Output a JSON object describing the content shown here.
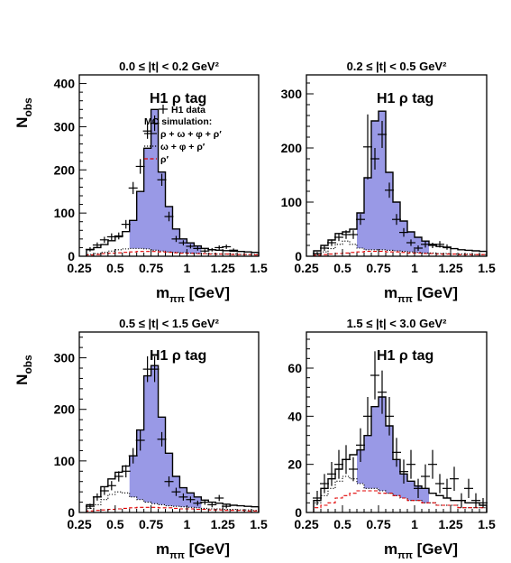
{
  "figure": {
    "ylabel": "N",
    "ylabel_sub": "obs",
    "xlabel": "m",
    "xlabel_sub": "ππ",
    "xlabel_unit": "[GeV]",
    "tag_label": "H1 ρ tag",
    "legend": {
      "data": "H1 data",
      "mc_title": "MC simulation:",
      "mc_total": "ρ + ω + φ + ρ′",
      "mc_bkg": "ω + φ + ρ′",
      "mc_rhoprime": "ρ′"
    },
    "colors": {
      "rho_fill": "#9999e6",
      "mc_total_line": "#000000",
      "mc_bkg_line": "#000000",
      "rhoprime_line": "#e00000",
      "data": "#000000"
    }
  },
  "chart_data": [
    {
      "type": "bar",
      "title": "0.0 ≤ |t| < 0.2 GeV²",
      "xlim": [
        0.25,
        1.5
      ],
      "ylim": [
        0,
        420
      ],
      "xticks": [
        "0.25",
        "0.5",
        "0.75",
        "1",
        "1.25",
        "1.5"
      ],
      "xtick_values": [
        0.25,
        0.5,
        0.75,
        1.0,
        1.25,
        1.5
      ],
      "yticks": [
        "0",
        "100",
        "200",
        "300",
        "400"
      ],
      "ytick_values": [
        0,
        100,
        200,
        300,
        400
      ],
      "bin_edges": [
        0.3,
        0.35,
        0.4,
        0.45,
        0.5,
        0.55,
        0.6,
        0.65,
        0.7,
        0.75,
        0.8,
        0.85,
        0.9,
        0.95,
        1.0,
        1.05,
        1.1,
        1.15,
        1.2,
        1.25,
        1.3,
        1.35,
        1.4,
        1.45,
        1.5
      ],
      "rho_range": [
        0.6,
        1.1
      ],
      "mc_total": [
        15,
        20,
        27,
        36,
        45,
        57,
        83,
        150,
        250,
        340,
        195,
        115,
        63,
        40,
        31,
        24,
        18,
        15,
        14,
        13,
        12,
        11,
        10,
        9
      ],
      "mc_bkg": [
        4,
        6,
        9,
        12,
        15,
        17,
        18,
        18,
        17,
        14,
        12,
        10,
        9,
        8,
        7,
        7,
        6,
        6,
        5,
        5,
        5,
        4,
        4,
        4
      ],
      "mc_rhoprime": [
        3,
        4,
        6,
        7,
        8,
        9,
        10,
        11,
        11,
        11,
        10,
        9,
        8,
        7,
        7,
        6,
        6,
        5,
        5,
        5,
        4,
        4,
        4,
        3
      ],
      "data_x": [
        0.325,
        0.375,
        0.425,
        0.475,
        0.525,
        0.575,
        0.625,
        0.675,
        0.725,
        0.775,
        0.825,
        0.875,
        0.925,
        0.975,
        1.025,
        1.075,
        1.125,
        1.175,
        1.225,
        1.275,
        1.325
      ],
      "data_y": [
        16,
        26,
        38,
        45,
        47,
        74,
        158,
        208,
        290,
        308,
        177,
        92,
        40,
        31,
        23,
        18,
        12,
        15,
        20,
        22,
        14
      ],
      "data_err": [
        5,
        6,
        7,
        8,
        8,
        10,
        14,
        17,
        18,
        18,
        14,
        11,
        7,
        6,
        5,
        5,
        4,
        4,
        5,
        5,
        4
      ],
      "show_legend": true
    },
    {
      "type": "bar",
      "title": "0.2 ≤ |t| < 0.5 GeV²",
      "xlim": [
        0.25,
        1.5
      ],
      "ylim": [
        0,
        335
      ],
      "xticks": [
        "0.25",
        "0.5",
        "0.75",
        "1",
        "1.25",
        "1.5"
      ],
      "xtick_values": [
        0.25,
        0.5,
        0.75,
        1.0,
        1.25,
        1.5
      ],
      "yticks": [
        "0",
        "100",
        "200",
        "300"
      ],
      "ytick_values": [
        0,
        100,
        200,
        300
      ],
      "bin_edges": [
        0.3,
        0.35,
        0.4,
        0.45,
        0.5,
        0.55,
        0.6,
        0.65,
        0.7,
        0.75,
        0.8,
        0.85,
        0.9,
        0.95,
        1.0,
        1.05,
        1.1,
        1.15,
        1.2,
        1.25,
        1.3,
        1.35,
        1.4,
        1.45,
        1.5
      ],
      "rho_range": [
        0.6,
        1.1
      ],
      "mc_total": [
        10,
        20,
        30,
        42,
        45,
        50,
        80,
        145,
        250,
        268,
        155,
        100,
        65,
        45,
        35,
        28,
        22,
        18,
        16,
        14,
        12,
        11,
        10,
        9
      ],
      "mc_bkg": [
        3,
        8,
        14,
        22,
        28,
        22,
        15,
        12,
        12,
        12,
        11,
        10,
        9,
        8,
        7,
        6,
        6,
        5,
        5,
        4,
        4,
        4,
        3,
        3
      ],
      "mc_rhoprime": [
        2,
        3,
        4,
        5,
        6,
        7,
        8,
        9,
        9,
        9,
        8,
        8,
        7,
        6,
        6,
        5,
        5,
        4,
        4,
        4,
        3,
        3,
        3,
        3
      ],
      "data_x": [
        0.325,
        0.375,
        0.425,
        0.475,
        0.525,
        0.575,
        0.625,
        0.675,
        0.725,
        0.775,
        0.825,
        0.875,
        0.925,
        0.975,
        1.025,
        1.075,
        1.125,
        1.175,
        1.225
      ],
      "data_y": [
        5,
        15,
        25,
        35,
        40,
        40,
        68,
        202,
        180,
        225,
        122,
        68,
        44,
        25,
        15,
        22,
        20,
        22,
        17
      ],
      "data_err": [
        3,
        5,
        6,
        7,
        8,
        8,
        10,
        60,
        20,
        25,
        14,
        10,
        8,
        6,
        5,
        6,
        5,
        6,
        5
      ],
      "show_legend": false
    },
    {
      "type": "bar",
      "title": "0.5 ≤ |t| < 1.5 GeV²",
      "xlim": [
        0.25,
        1.5
      ],
      "ylim": [
        0,
        350
      ],
      "xticks": [
        "0.25",
        "0.5",
        "0.75",
        "1",
        "1.25",
        "1.5"
      ],
      "xtick_values": [
        0.25,
        0.5,
        0.75,
        1.0,
        1.25,
        1.5
      ],
      "yticks": [
        "0",
        "100",
        "200",
        "300"
      ],
      "ytick_values": [
        0,
        100,
        200,
        300
      ],
      "bin_edges": [
        0.3,
        0.35,
        0.4,
        0.45,
        0.5,
        0.55,
        0.6,
        0.65,
        0.7,
        0.75,
        0.8,
        0.85,
        0.9,
        0.95,
        1.0,
        1.05,
        1.1,
        1.15,
        1.2,
        1.25,
        1.3,
        1.35,
        1.4,
        1.45,
        1.5
      ],
      "rho_range": [
        0.6,
        1.1
      ],
      "mc_total": [
        15,
        30,
        50,
        65,
        78,
        90,
        110,
        160,
        265,
        285,
        185,
        115,
        70,
        48,
        38,
        30,
        24,
        20,
        18,
        16,
        14,
        13,
        12,
        11
      ],
      "mc_bkg": [
        8,
        15,
        25,
        35,
        40,
        38,
        30,
        25,
        20,
        17,
        15,
        13,
        12,
        11,
        10,
        9,
        8,
        7,
        7,
        6,
        6,
        5,
        5,
        4
      ],
      "mc_rhoprime": [
        3,
        4,
        5,
        6,
        7,
        8,
        9,
        10,
        10,
        10,
        9,
        9,
        8,
        7,
        7,
        6,
        6,
        5,
        5,
        4,
        4,
        4,
        3,
        3
      ],
      "data_x": [
        0.325,
        0.375,
        0.425,
        0.475,
        0.525,
        0.575,
        0.625,
        0.675,
        0.725,
        0.775,
        0.825,
        0.875,
        0.925,
        0.975,
        1.025,
        1.075,
        1.125,
        1.175,
        1.225,
        1.275
      ],
      "data_y": [
        12,
        30,
        42,
        52,
        70,
        80,
        110,
        140,
        278,
        278,
        142,
        60,
        40,
        30,
        25,
        18,
        20,
        15,
        28,
        12
      ],
      "data_err": [
        5,
        7,
        8,
        9,
        10,
        12,
        15,
        20,
        25,
        25,
        14,
        10,
        8,
        7,
        6,
        5,
        5,
        5,
        6,
        4
      ],
      "show_legend": false
    },
    {
      "type": "bar",
      "title": "1.5 ≤ |t| < 3.0 GeV²",
      "xlim": [
        0.25,
        1.5
      ],
      "ylim": [
        0,
        75
      ],
      "xticks": [
        "0.25",
        "0.5",
        "0.75",
        "1",
        "1.25",
        "1.5"
      ],
      "xtick_values": [
        0.25,
        0.5,
        0.75,
        1.0,
        1.25,
        1.5
      ],
      "yticks": [
        "0",
        "20",
        "40",
        "60"
      ],
      "ytick_values": [
        0,
        20,
        40,
        60
      ],
      "bin_edges": [
        0.3,
        0.35,
        0.4,
        0.45,
        0.5,
        0.55,
        0.6,
        0.65,
        0.7,
        0.75,
        0.8,
        0.85,
        0.9,
        0.95,
        1.0,
        1.05,
        1.1,
        1.15,
        1.2,
        1.25,
        1.3,
        1.35,
        1.4,
        1.45,
        1.5
      ],
      "rho_range": [
        0.6,
        1.1
      ],
      "mc_total": [
        5,
        10,
        14,
        18,
        22,
        24,
        26,
        32,
        44,
        48,
        36,
        22,
        16,
        13,
        11,
        10,
        8,
        7,
        6,
        5,
        5,
        4,
        4,
        3
      ],
      "mc_bkg": [
        4,
        7,
        10,
        13,
        15,
        14,
        12,
        10,
        10,
        9,
        8,
        7,
        6,
        5,
        5,
        4,
        4,
        3,
        3,
        3,
        2,
        2,
        2,
        2
      ],
      "mc_rhoprime": [
        2,
        3,
        4,
        6,
        7,
        8,
        9,
        9,
        9,
        8,
        8,
        7,
        6,
        5,
        5,
        4,
        4,
        3,
        3,
        3,
        2,
        2,
        2,
        2
      ],
      "data_x": [
        0.325,
        0.375,
        0.425,
        0.475,
        0.525,
        0.575,
        0.625,
        0.675,
        0.725,
        0.775,
        0.825,
        0.875,
        0.925,
        0.975,
        1.025,
        1.075,
        1.125,
        1.175,
        1.225,
        1.275,
        1.325,
        1.375,
        1.425,
        1.475
      ],
      "data_y": [
        6,
        12,
        16,
        20,
        22,
        18,
        28,
        40,
        57,
        50,
        40,
        25,
        17,
        20,
        10,
        15,
        20,
        12,
        10,
        14,
        5,
        10,
        5,
        4
      ],
      "data_err": [
        3,
        4,
        5,
        6,
        6,
        5,
        7,
        8,
        10,
        9,
        8,
        6,
        5,
        6,
        4,
        5,
        6,
        4,
        4,
        5,
        3,
        4,
        3,
        2
      ],
      "show_legend": false
    }
  ]
}
